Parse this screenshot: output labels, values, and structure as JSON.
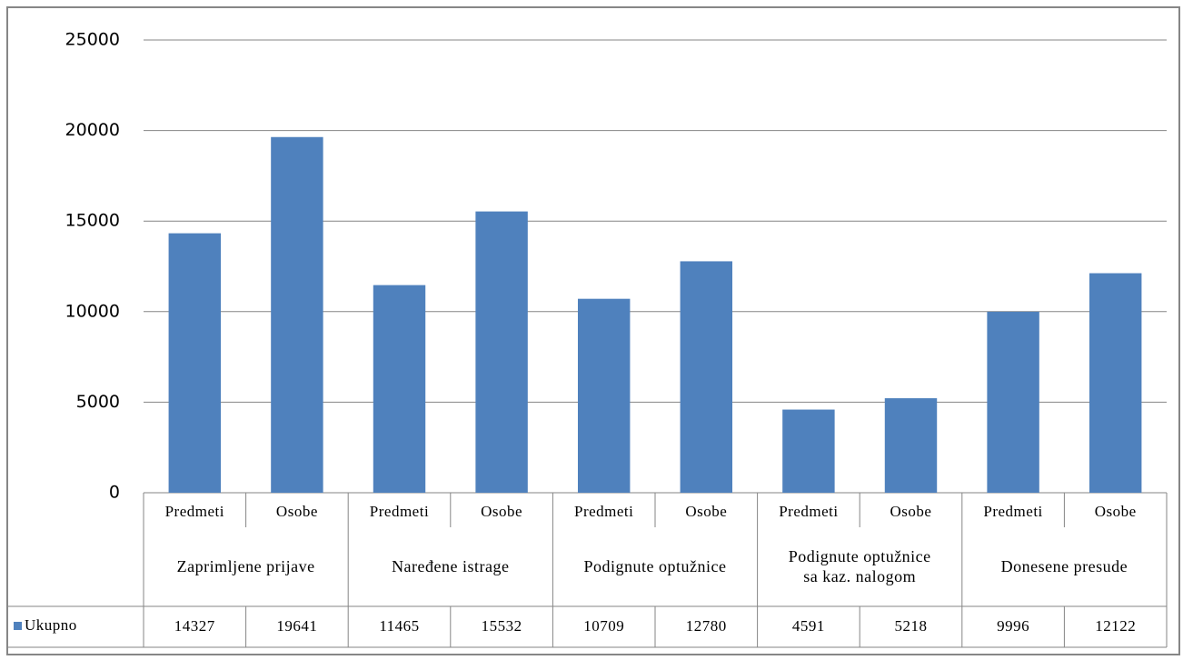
{
  "chart_data": {
    "type": "bar",
    "categories": [
      "Predmeti",
      "Osobe",
      "Predmeti",
      "Osobe",
      "Predmeti",
      "Osobe",
      "Predmeti",
      "Osobe",
      "Predmeti",
      "Osobe"
    ],
    "groups": [
      "Zaprimljene prijave",
      "Naređene istrage",
      "Podignute optužnice",
      "Podignute optužnice sa kaz. nalogom",
      "Donesene presude"
    ],
    "series": [
      {
        "name": "Ukupno",
        "color": "#4f81bd",
        "values": [
          14327,
          19641,
          11465,
          15532,
          10709,
          12780,
          4591,
          5218,
          9996,
          12122
        ]
      }
    ],
    "ylim": [
      0,
      25000
    ],
    "yticks": [
      0,
      5000,
      10000,
      15000,
      20000,
      25000
    ],
    "grid": true
  }
}
